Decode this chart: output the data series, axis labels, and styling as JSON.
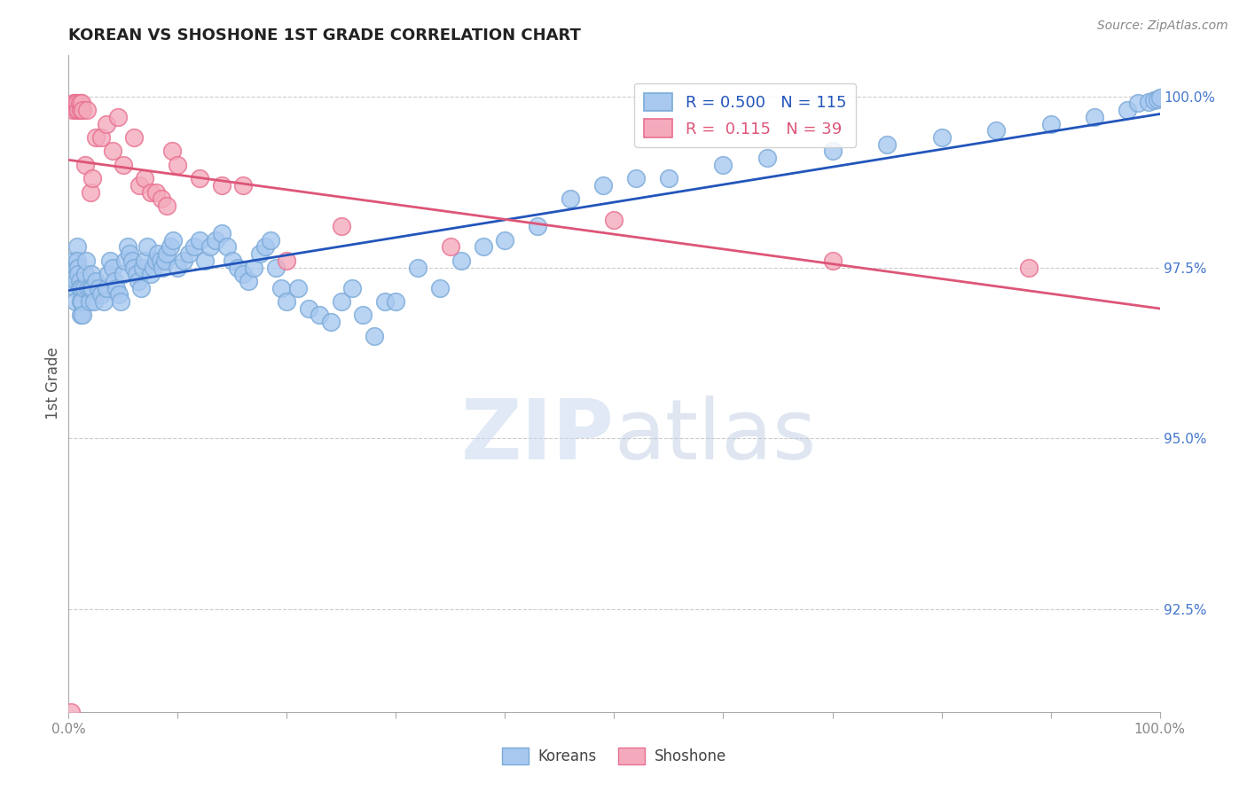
{
  "title": "KOREAN VS SHOSHONE 1ST GRADE CORRELATION CHART",
  "source": "Source: ZipAtlas.com",
  "xlabel": "",
  "ylabel": "1st Grade",
  "xlim": [
    0.0,
    1.0
  ],
  "ylim": [
    0.91,
    1.006
  ],
  "yticks": [
    0.925,
    0.95,
    0.975,
    1.0
  ],
  "ytick_labels": [
    "92.5%",
    "95.0%",
    "97.5%",
    "100.0%"
  ],
  "xticks": [
    0.0,
    0.1,
    0.2,
    0.3,
    0.4,
    0.5,
    0.6,
    0.7,
    0.8,
    0.9,
    1.0
  ],
  "korean_color": "#A8C8F0",
  "shoshone_color": "#F4AABC",
  "korean_edge": "#7AAAD8",
  "shoshone_edge": "#E87090",
  "trend_korean_color": "#2255BB",
  "trend_shoshone_color": "#DD5577",
  "legend_text_color": "#222222",
  "korean_R": 0.5,
  "korean_N": 115,
  "shoshone_R": 0.115,
  "shoshone_N": 39,
  "background_color": "#FFFFFF",
  "grid_color": "#CCCCCC",
  "title_color": "#222222",
  "label_color": "#555555",
  "tick_color_y": "#4477CC",
  "tick_color_x": "#888888",
  "korean_x": [
    0.005,
    0.005,
    0.006,
    0.006,
    0.007,
    0.007,
    0.008,
    0.008,
    0.009,
    0.009,
    0.01,
    0.01,
    0.011,
    0.011,
    0.012,
    0.012,
    0.013,
    0.014,
    0.015,
    0.016,
    0.018,
    0.019,
    0.02,
    0.021,
    0.022,
    0.023,
    0.025,
    0.027,
    0.03,
    0.032,
    0.035,
    0.036,
    0.038,
    0.04,
    0.042,
    0.044,
    0.046,
    0.048,
    0.05,
    0.052,
    0.054,
    0.056,
    0.058,
    0.06,
    0.062,
    0.064,
    0.066,
    0.068,
    0.07,
    0.072,
    0.075,
    0.078,
    0.08,
    0.082,
    0.084,
    0.086,
    0.088,
    0.09,
    0.093,
    0.096,
    0.1,
    0.105,
    0.11,
    0.115,
    0.12,
    0.125,
    0.13,
    0.135,
    0.14,
    0.145,
    0.15,
    0.155,
    0.16,
    0.165,
    0.17,
    0.175,
    0.18,
    0.185,
    0.19,
    0.195,
    0.2,
    0.21,
    0.22,
    0.23,
    0.24,
    0.25,
    0.26,
    0.27,
    0.28,
    0.29,
    0.3,
    0.32,
    0.34,
    0.36,
    0.38,
    0.4,
    0.43,
    0.46,
    0.49,
    0.52,
    0.55,
    0.6,
    0.64,
    0.7,
    0.75,
    0.8,
    0.85,
    0.9,
    0.94,
    0.97,
    0.98,
    0.99,
    0.995,
    0.998,
    1.0
  ],
  "korean_y": [
    0.976,
    0.974,
    0.972,
    0.97,
    0.975,
    0.973,
    0.978,
    0.976,
    0.975,
    0.974,
    0.973,
    0.972,
    0.97,
    0.968,
    0.972,
    0.97,
    0.968,
    0.972,
    0.974,
    0.976,
    0.972,
    0.97,
    0.972,
    0.974,
    0.972,
    0.97,
    0.973,
    0.972,
    0.971,
    0.97,
    0.972,
    0.974,
    0.976,
    0.975,
    0.973,
    0.972,
    0.971,
    0.97,
    0.974,
    0.976,
    0.978,
    0.977,
    0.976,
    0.975,
    0.974,
    0.973,
    0.972,
    0.975,
    0.976,
    0.978,
    0.974,
    0.975,
    0.976,
    0.977,
    0.976,
    0.975,
    0.976,
    0.977,
    0.978,
    0.979,
    0.975,
    0.976,
    0.977,
    0.978,
    0.979,
    0.976,
    0.978,
    0.979,
    0.98,
    0.978,
    0.976,
    0.975,
    0.974,
    0.973,
    0.975,
    0.977,
    0.978,
    0.979,
    0.975,
    0.972,
    0.97,
    0.972,
    0.969,
    0.968,
    0.967,
    0.97,
    0.972,
    0.968,
    0.965,
    0.97,
    0.97,
    0.975,
    0.972,
    0.976,
    0.978,
    0.979,
    0.981,
    0.985,
    0.987,
    0.988,
    0.988,
    0.99,
    0.991,
    0.992,
    0.993,
    0.994,
    0.995,
    0.996,
    0.997,
    0.998,
    0.999,
    0.9992,
    0.9995,
    0.9996,
    0.9998
  ],
  "shoshone_x": [
    0.002,
    0.004,
    0.005,
    0.006,
    0.007,
    0.008,
    0.009,
    0.01,
    0.011,
    0.012,
    0.013,
    0.015,
    0.017,
    0.02,
    0.022,
    0.025,
    0.03,
    0.035,
    0.04,
    0.045,
    0.05,
    0.06,
    0.065,
    0.07,
    0.075,
    0.08,
    0.085,
    0.09,
    0.095,
    0.1,
    0.12,
    0.14,
    0.16,
    0.2,
    0.25,
    0.35,
    0.5,
    0.7,
    0.88
  ],
  "shoshone_y": [
    0.91,
    0.998,
    0.999,
    0.999,
    0.998,
    0.999,
    0.998,
    0.999,
    0.998,
    0.999,
    0.998,
    0.99,
    0.998,
    0.986,
    0.988,
    0.994,
    0.994,
    0.996,
    0.992,
    0.997,
    0.99,
    0.994,
    0.987,
    0.988,
    0.986,
    0.986,
    0.985,
    0.984,
    0.992,
    0.99,
    0.988,
    0.987,
    0.987,
    0.976,
    0.981,
    0.978,
    0.982,
    0.976,
    0.975
  ]
}
